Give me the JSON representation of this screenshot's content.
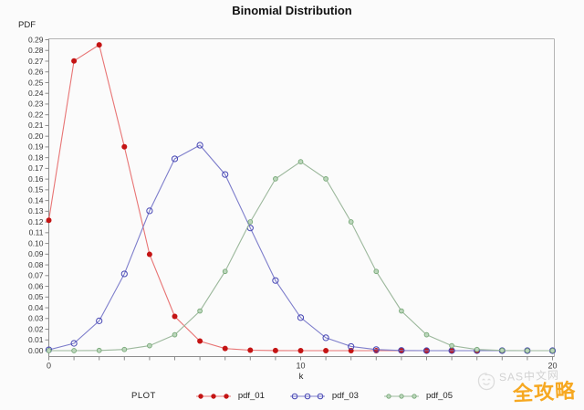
{
  "chart": {
    "title": "Binomial Distribution",
    "ylabel": "PDF",
    "xlabel": "k",
    "legend_title": "PLOT"
  },
  "chart_data": {
    "type": "line",
    "title": "Binomial Distribution",
    "xlabel": "k",
    "ylabel": "PDF",
    "x": [
      0,
      1,
      2,
      3,
      4,
      5,
      6,
      7,
      8,
      9,
      10,
      11,
      12,
      13,
      14,
      15,
      16,
      17,
      18,
      19,
      20
    ],
    "xlim": [
      0,
      20
    ],
    "ylim": [
      0,
      0.29
    ],
    "x_major_ticks": [
      0,
      10,
      20
    ],
    "y_tick_step": 0.01,
    "grid": false,
    "legend_position": "bottom",
    "frame_color": "#b4b4b4",
    "axis_color": "#8c8c8c",
    "tick_text_color": "#3a3a3a",
    "series": [
      {
        "name": "pdf_01",
        "marker": "filled-circle",
        "line_color": "#e87474",
        "marker_color": "#c41414",
        "values": [
          0.1216,
          0.2702,
          0.2852,
          0.1901,
          0.0898,
          0.0319,
          0.0089,
          0.002,
          0.0004,
          0.0001,
          0,
          0,
          0,
          0,
          0,
          0,
          0,
          0,
          0,
          0,
          0
        ]
      },
      {
        "name": "pdf_03",
        "marker": "open-circle",
        "line_color": "#7d7dcb",
        "marker_color": "#4646b4",
        "values": [
          0.0008,
          0.0068,
          0.0278,
          0.0716,
          0.1304,
          0.1789,
          0.1916,
          0.1643,
          0.1144,
          0.0654,
          0.0308,
          0.012,
          0.0039,
          0.001,
          0.0002,
          0,
          0,
          0,
          0,
          0,
          0
        ]
      },
      {
        "name": "pdf_05",
        "marker": "dot-circle",
        "line_color": "#9cb89c",
        "marker_color": "#76a876",
        "marker_fill": "#bcd6bc",
        "values": [
          0,
          0,
          0.0002,
          0.0011,
          0.0046,
          0.0148,
          0.037,
          0.0739,
          0.1201,
          0.1602,
          0.1762,
          0.1602,
          0.1201,
          0.0739,
          0.037,
          0.0148,
          0.0046,
          0.0011,
          0.0002,
          0,
          0
        ]
      }
    ]
  },
  "watermark": {
    "icon": "scribble-doodle-icon",
    "gray_text": "SAS中文网",
    "orange_text": "全攻略",
    "orange_color": "#f6a821"
  }
}
